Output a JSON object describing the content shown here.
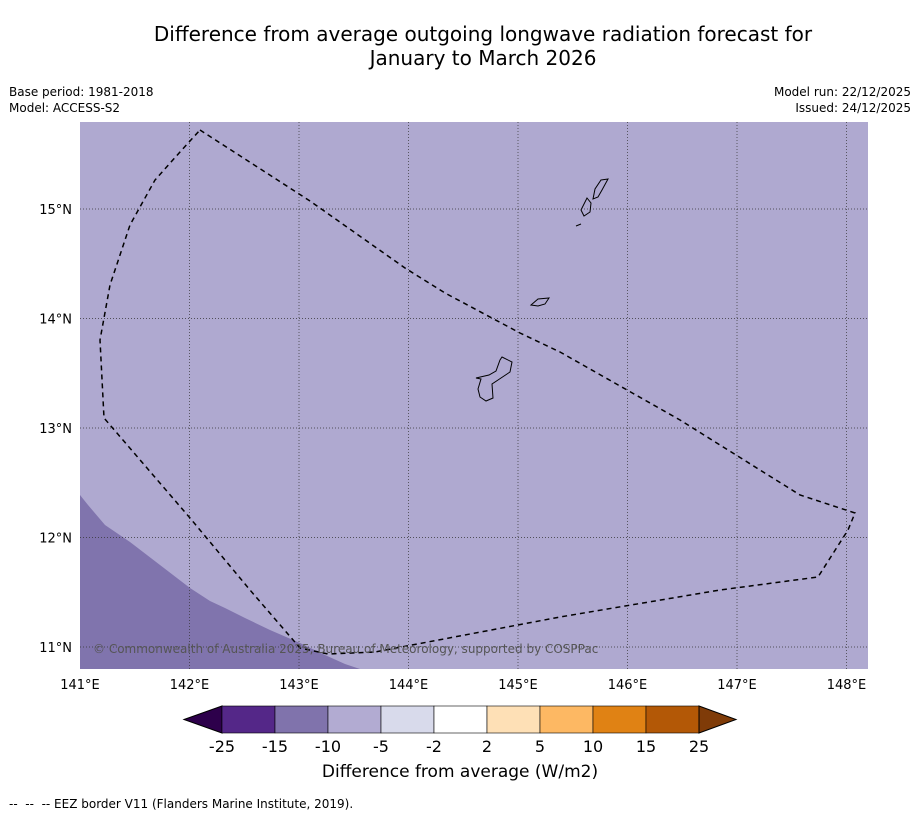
{
  "title_line1": "Difference from average outgoing longwave radiation forecast for",
  "title_line2": "January to March 2026",
  "base_period": "Base period: 1981-2018",
  "model": "Model: ACCESS-S2",
  "model_run": "Model run: 22/12/2025",
  "issued": "Issued: 24/12/2025",
  "copyright": "© Commonwealth of Australia 2025, Bureau of Meteorology, supported by COSPPac",
  "colors": {
    "background_class": "#afa9d0",
    "lower_class": "#8074ad",
    "border": "#000000"
  },
  "longitudes": [
    "141°E",
    "142°E",
    "143°E",
    "144°E",
    "145°E",
    "146°E",
    "147°E",
    "148°E"
  ],
  "latitudes": [
    "15°N",
    "14°N",
    "13°N",
    "12°N",
    "11°N"
  ],
  "colorbar": {
    "title": "Difference from average (W/m2)",
    "labels": [
      "-25",
      "-15",
      "-10",
      "-5",
      "-2",
      "2",
      "5",
      "10",
      "15",
      "25"
    ],
    "colors": [
      "#2d004b",
      "#542788",
      "#8073ac",
      "#b2abd2",
      "#d8daeb",
      "#ffffff",
      "#fee0b6",
      "#fdb863",
      "#e08214",
      "#b35806",
      "#7f3b08"
    ]
  },
  "footer": "--  --  -- EEZ border V11 (Flanders Marine Institute, 2019)."
}
